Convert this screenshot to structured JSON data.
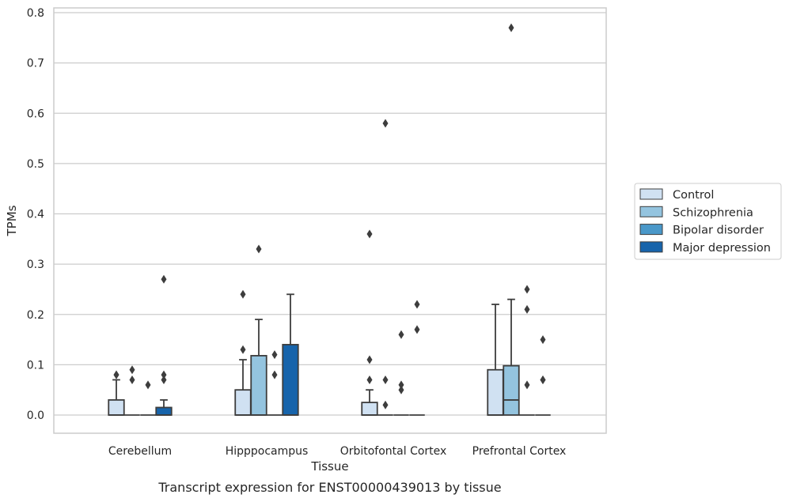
{
  "chart_data": {
    "type": "box",
    "title": "",
    "caption": "Transcript expression for ENST00000439013 by tissue",
    "xlabel": "Tissue",
    "ylabel": "TPMs",
    "ylim": [
      -0.04,
      0.81
    ],
    "yticks": [
      0.0,
      0.1,
      0.2,
      0.3,
      0.4,
      0.5,
      0.6,
      0.7,
      0.8
    ],
    "ytick_labels": [
      "0.0",
      "0.1",
      "0.2",
      "0.3",
      "0.4",
      "0.5",
      "0.6",
      "0.7",
      "0.8"
    ],
    "grid": "horizontal",
    "legend_position": "right",
    "categories": [
      "Cerebellum",
      "Hipppocampus",
      "Orbitofontal Cortex",
      "Prefrontal Cortex"
    ],
    "series": [
      {
        "name": "Control",
        "color": "#d0e1f2",
        "boxes": [
          {
            "q1": 0.0,
            "median": 0.0,
            "q3": 0.03,
            "whisker_low": 0.0,
            "whisker_high": 0.07,
            "outliers": [
              0.08,
              0.08
            ]
          },
          {
            "q1": 0.0,
            "median": 0.0,
            "q3": 0.05,
            "whisker_low": 0.0,
            "whisker_high": 0.11,
            "outliers": [
              0.13,
              0.24
            ]
          },
          {
            "q1": 0.0,
            "median": 0.0,
            "q3": 0.025,
            "whisker_low": 0.0,
            "whisker_high": 0.05,
            "outliers": [
              0.07,
              0.11,
              0.36
            ]
          },
          {
            "q1": 0.0,
            "median": 0.0,
            "q3": 0.09,
            "whisker_low": 0.0,
            "whisker_high": 0.22,
            "outliers": []
          }
        ]
      },
      {
        "name": "Schizophrenia",
        "color": "#94c4df",
        "boxes": [
          {
            "q1": 0.0,
            "median": 0.0,
            "q3": 0.0,
            "whisker_low": 0.0,
            "whisker_high": 0.0,
            "outliers": [
              0.07,
              0.09
            ]
          },
          {
            "q1": 0.0,
            "median": 0.0,
            "q3": 0.118,
            "whisker_low": 0.0,
            "whisker_high": 0.19,
            "outliers": [
              0.33
            ]
          },
          {
            "q1": 0.0,
            "median": 0.0,
            "q3": 0.0,
            "whisker_low": 0.0,
            "whisker_high": 0.0,
            "outliers": [
              0.02,
              0.07,
              0.58
            ]
          },
          {
            "q1": 0.0,
            "median": 0.03,
            "q3": 0.098,
            "whisker_low": 0.0,
            "whisker_high": 0.23,
            "outliers": [
              0.77
            ]
          }
        ]
      },
      {
        "name": "Bipolar disorder",
        "color": "#4a98c9",
        "boxes": [
          {
            "q1": 0.0,
            "median": 0.0,
            "q3": 0.0,
            "whisker_low": 0.0,
            "whisker_high": 0.0,
            "outliers": [
              0.06
            ]
          },
          {
            "q1": 0.0,
            "median": 0.0,
            "q3": 0.0,
            "whisker_low": 0.0,
            "whisker_high": 0.0,
            "outliers": [
              0.08,
              0.12
            ]
          },
          {
            "q1": 0.0,
            "median": 0.0,
            "q3": 0.0,
            "whisker_low": 0.0,
            "whisker_high": 0.0,
            "outliers": [
              0.05,
              0.06,
              0.16
            ]
          },
          {
            "q1": 0.0,
            "median": 0.0,
            "q3": 0.0,
            "whisker_low": 0.0,
            "whisker_high": 0.0,
            "outliers": [
              0.06,
              0.21,
              0.25
            ]
          }
        ]
      },
      {
        "name": "Major depression",
        "color": "#1764ab",
        "boxes": [
          {
            "q1": 0.0,
            "median": 0.0,
            "q3": 0.015,
            "whisker_low": 0.0,
            "whisker_high": 0.03,
            "outliers": [
              0.07,
              0.08,
              0.27
            ]
          },
          {
            "q1": 0.0,
            "median": 0.0,
            "q3": 0.14,
            "whisker_low": 0.0,
            "whisker_high": 0.24,
            "outliers": []
          },
          {
            "q1": 0.0,
            "median": 0.0,
            "q3": 0.0,
            "whisker_low": 0.0,
            "whisker_high": 0.0,
            "outliers": [
              0.17,
              0.22
            ]
          },
          {
            "q1": 0.0,
            "median": 0.0,
            "q3": 0.0,
            "whisker_low": 0.0,
            "whisker_high": 0.0,
            "outliers": [
              0.07,
              0.07,
              0.15
            ]
          }
        ]
      }
    ]
  }
}
